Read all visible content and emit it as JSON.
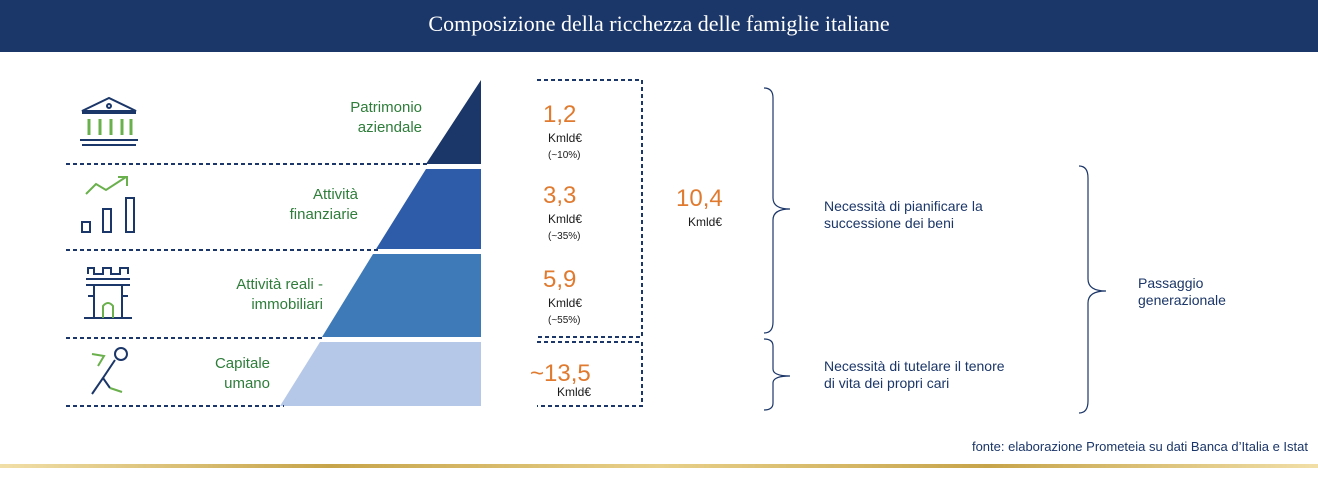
{
  "title": "Composizione della ricchezza delle famiglie italiane",
  "layers": [
    {
      "label_line1": "Patrimonio",
      "label_line2": "aziendale",
      "value": "1,2",
      "unit": "Kmld€",
      "share": "(~10%)",
      "icon": "bank-building-icon",
      "color": "#1b3668"
    },
    {
      "label_line1": "Attività",
      "label_line2": "finanziarie",
      "value": "3,3",
      "unit": "Kmld€",
      "share": "(~35%)",
      "icon": "rising-bar-chart-icon",
      "color": "#2f5ca8"
    },
    {
      "label_line1": "Attività reali -",
      "label_line2": "immobiliari",
      "value": "5,9",
      "unit": "Kmld€",
      "share": "(~55%)",
      "icon": "castle-tower-icon",
      "color": "#3f7ab8"
    },
    {
      "label_line1": "Capitale",
      "label_line2": "umano",
      "value": "~13,5",
      "unit": "Kmld€",
      "share": "",
      "icon": "running-person-icon",
      "color": "#b6c8e8"
    }
  ],
  "total": {
    "value": "10,4",
    "unit": "Kmld€"
  },
  "notes": {
    "plan_line1": "Necessità di pianificare la",
    "plan_line2": "successione dei beni",
    "protect_line1": "Necessità di tutelare il tenore",
    "protect_line2": "di vita dei propri cari",
    "transfer_line1": "Passaggio",
    "transfer_line2": "generazionale"
  },
  "source": "fonte: elaborazione Prometeia su dati Banca d’Italia e Istat",
  "colors": {
    "header": "#1b3668",
    "label_green": "#2e7d3a",
    "value_orange": "#e07a2f",
    "icon_green": "#6ab04c"
  }
}
